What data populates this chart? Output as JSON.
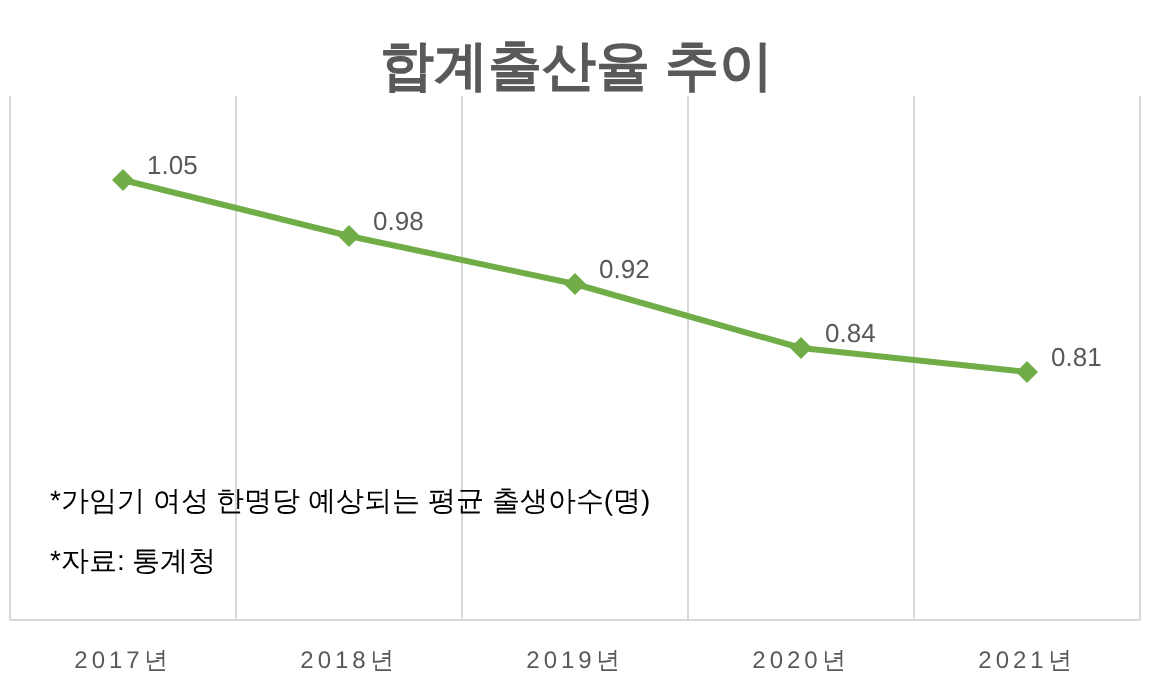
{
  "chart_data": {
    "type": "line",
    "title": "합계출산율 추이",
    "categories": [
      "2017년",
      "2018년",
      "2019년",
      "2020년",
      "2021년"
    ],
    "series": [
      {
        "color": "#70ad47",
        "values": [
          1.05,
          0.98,
          0.92,
          0.84,
          0.81
        ]
      }
    ],
    "data_labels": true,
    "marker": "diamond",
    "line_style": "solid",
    "grid": "x",
    "annotations": [
      "*가임기 여성 한명당 예상되는 평균 출생아수(명)",
      "*자료: 통계청"
    ]
  }
}
